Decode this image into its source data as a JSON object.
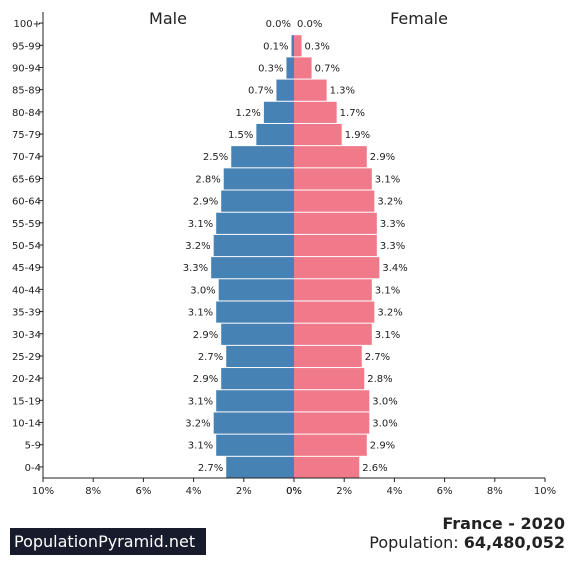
{
  "brand": "PopulationPyramid.net",
  "country_year": "France - 2020",
  "population_label": "Population:",
  "population_value": "64,480,052",
  "colors": {
    "male": "#4682b4",
    "female": "#f07a8a"
  },
  "chart_data": {
    "type": "bar",
    "orientation": "horizontal-pyramid",
    "categories": [
      "100+",
      "95-99",
      "90-94",
      "85-89",
      "80-84",
      "75-79",
      "70-74",
      "65-69",
      "60-64",
      "55-59",
      "50-54",
      "45-49",
      "40-44",
      "35-39",
      "30-34",
      "25-29",
      "20-24",
      "15-19",
      "10-14",
      "5-9",
      "0-4"
    ],
    "series": [
      {
        "name": "Male",
        "values": [
          0.0,
          0.1,
          0.3,
          0.7,
          1.2,
          1.5,
          2.5,
          2.8,
          2.9,
          3.1,
          3.2,
          3.3,
          3.0,
          3.1,
          2.9,
          2.7,
          2.9,
          3.1,
          3.2,
          3.1,
          2.7
        ]
      },
      {
        "name": "Female",
        "values": [
          0.0,
          0.3,
          0.7,
          1.3,
          1.7,
          1.9,
          2.9,
          3.1,
          3.2,
          3.3,
          3.3,
          3.4,
          3.1,
          3.2,
          3.1,
          2.7,
          2.8,
          3.0,
          3.0,
          2.9,
          2.6
        ]
      }
    ],
    "xlim": [
      0,
      10
    ],
    "xticks_male": [
      "10%",
      "8%",
      "6%",
      "4%",
      "2%",
      "0%"
    ],
    "xticks_female": [
      "0%",
      "2%",
      "4%",
      "6%",
      "8%",
      "10%"
    ],
    "unit": "%"
  }
}
